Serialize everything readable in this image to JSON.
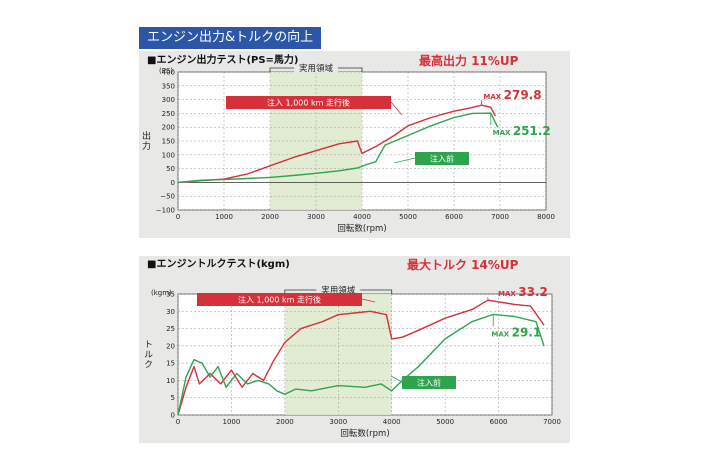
{
  "header": {
    "title": "エンジン出力&トルクの向上"
  },
  "colors": {
    "before": "#2ea44f",
    "after": "#d6303a",
    "header": "#2c56a8",
    "zone": "#e1ecd3"
  },
  "chart_data": [
    {
      "type": "line",
      "title": "■エンジン出力テスト(PS=馬力)",
      "headline": "最高出力 11%UP",
      "xlabel": "回転数(rpm)",
      "ylabel": "出力",
      "yunit": "(PS)",
      "xlim": [
        0,
        8000
      ],
      "ylim": [
        -100,
        400
      ],
      "xticks": [
        0,
        1000,
        2000,
        3000,
        4000,
        5000,
        6000,
        7000,
        8000
      ],
      "yticks": [
        -100,
        -50,
        0,
        50,
        100,
        150,
        200,
        250,
        300,
        350,
        400
      ],
      "grid": true,
      "zone": {
        "label": "実用領域",
        "from": 2000,
        "to": 4000
      },
      "annotations": [
        {
          "text": "MAX 279.8",
          "x": 6600,
          "y": 279.8,
          "series": "after"
        },
        {
          "text": "MAX 251.2",
          "x": 6800,
          "y": 251.2,
          "series": "before"
        }
      ],
      "series": [
        {
          "name": "注入 1,000 km 走行後",
          "key": "after",
          "points": [
            [
              0,
              0
            ],
            [
              500,
              6
            ],
            [
              1000,
              12
            ],
            [
              1500,
              30
            ],
            [
              2000,
              60
            ],
            [
              2500,
              90
            ],
            [
              3000,
              115
            ],
            [
              3500,
              140
            ],
            [
              3900,
              150
            ],
            [
              4000,
              105
            ],
            [
              4300,
              130
            ],
            [
              4700,
              170
            ],
            [
              5000,
              205
            ],
            [
              5500,
              235
            ],
            [
              6000,
              258
            ],
            [
              6300,
              268
            ],
            [
              6600,
              279.8
            ],
            [
              6800,
              272
            ],
            [
              6900,
              240
            ]
          ]
        },
        {
          "name": "注入前",
          "key": "before",
          "points": [
            [
              0,
              0
            ],
            [
              500,
              8
            ],
            [
              1000,
              10
            ],
            [
              1500,
              14
            ],
            [
              2000,
              18
            ],
            [
              2500,
              25
            ],
            [
              3000,
              33
            ],
            [
              3500,
              42
            ],
            [
              3900,
              52
            ],
            [
              4100,
              65
            ],
            [
              4300,
              75
            ],
            [
              4500,
              135
            ],
            [
              5000,
              170
            ],
            [
              5500,
              205
            ],
            [
              6000,
              235
            ],
            [
              6400,
              250
            ],
            [
              6800,
              251.2
            ],
            [
              6950,
              200
            ]
          ]
        }
      ]
    },
    {
      "type": "line",
      "title": "■エンジントルクテスト(kgm)",
      "headline": "最大トルク 14%UP",
      "xlabel": "回転数(rpm)",
      "ylabel": "トルク",
      "yunit": "(kgm)",
      "xlim": [
        0,
        7000
      ],
      "ylim": [
        0,
        35
      ],
      "xticks": [
        0,
        1000,
        2000,
        3000,
        4000,
        5000,
        6000,
        7000
      ],
      "yticks": [
        0,
        5,
        10,
        15,
        20,
        25,
        30,
        35
      ],
      "grid": true,
      "zone": {
        "label": "実用領域",
        "from": 2000,
        "to": 4000
      },
      "annotations": [
        {
          "text": "MAX 33.2",
          "x": 5800,
          "y": 33.2,
          "series": "after"
        },
        {
          "text": "MAX 29.1",
          "x": 5900,
          "y": 29.1,
          "series": "before"
        }
      ],
      "series": [
        {
          "name": "注入 1,000 km 走行後",
          "key": "after",
          "points": [
            [
              0,
              0
            ],
            [
              150,
              8
            ],
            [
              300,
              14
            ],
            [
              400,
              9
            ],
            [
              600,
              12
            ],
            [
              800,
              9
            ],
            [
              1000,
              13
            ],
            [
              1200,
              8
            ],
            [
              1400,
              12
            ],
            [
              1600,
              10
            ],
            [
              1800,
              16
            ],
            [
              2000,
              21
            ],
            [
              2300,
              25
            ],
            [
              2700,
              27
            ],
            [
              3000,
              29
            ],
            [
              3300,
              29.5
            ],
            [
              3600,
              30
            ],
            [
              3900,
              29
            ],
            [
              4000,
              22
            ],
            [
              4200,
              22.5
            ],
            [
              4500,
              24.5
            ],
            [
              5000,
              28
            ],
            [
              5500,
              30.5
            ],
            [
              5800,
              33.2
            ],
            [
              6300,
              32
            ],
            [
              6600,
              31.5
            ],
            [
              6850,
              26
            ]
          ]
        },
        {
          "name": "注入前",
          "key": "before",
          "points": [
            [
              0,
              0
            ],
            [
              150,
              11
            ],
            [
              300,
              16
            ],
            [
              450,
              15
            ],
            [
              600,
              11
            ],
            [
              750,
              14
            ],
            [
              900,
              8
            ],
            [
              1100,
              12
            ],
            [
              1300,
              9
            ],
            [
              1500,
              10
            ],
            [
              1700,
              9
            ],
            [
              1850,
              7
            ],
            [
              2000,
              6
            ],
            [
              2200,
              7.5
            ],
            [
              2500,
              7
            ],
            [
              3000,
              8.5
            ],
            [
              3500,
              8
            ],
            [
              3800,
              9
            ],
            [
              4000,
              7
            ],
            [
              4200,
              10
            ],
            [
              4500,
              14
            ],
            [
              5000,
              22
            ],
            [
              5500,
              27
            ],
            [
              5900,
              29.1
            ],
            [
              6300,
              28.5
            ],
            [
              6700,
              27
            ],
            [
              6850,
              20
            ]
          ]
        }
      ]
    }
  ]
}
